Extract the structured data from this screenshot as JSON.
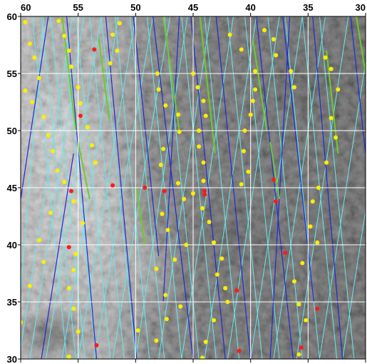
{
  "map": {
    "type": "lat-lon-grid-overlay",
    "background": "grayscale satellite terrain image",
    "lon_range": [
      60,
      30
    ],
    "lat_range": [
      30,
      60
    ],
    "lon_ticks": [
      60,
      55,
      50,
      45,
      40,
      35,
      30
    ],
    "lat_ticks": [
      60,
      55,
      50,
      45,
      40,
      35,
      30
    ],
    "grid": true,
    "colors": {
      "grid": "#ffffff",
      "track_cyan": "#66e8ee",
      "track_blue": "#1d2bd6",
      "track_green": "#6ecb2a",
      "point_yellow": "#ffee00",
      "point_red": "#ff1a1a"
    },
    "cyan_tracks": [
      [
        [
          59.0,
          60
        ],
        [
          56.0,
          30
        ]
      ],
      [
        [
          58.2,
          60
        ],
        [
          55.2,
          30
        ]
      ],
      [
        [
          57.4,
          60
        ],
        [
          54.4,
          30
        ]
      ],
      [
        [
          56.4,
          60
        ],
        [
          53.4,
          30
        ]
      ],
      [
        [
          55.2,
          60
        ],
        [
          52.2,
          30
        ]
      ],
      [
        [
          54.0,
          60
        ],
        [
          51.0,
          30
        ]
      ],
      [
        [
          53.0,
          60
        ],
        [
          50.0,
          30
        ]
      ],
      [
        [
          51.8,
          60
        ],
        [
          48.8,
          30
        ]
      ],
      [
        [
          50.5,
          60
        ],
        [
          47.5,
          30
        ]
      ],
      [
        [
          49.0,
          60
        ],
        [
          46.0,
          30
        ]
      ],
      [
        [
          47.5,
          60
        ],
        [
          44.5,
          30
        ]
      ],
      [
        [
          46.0,
          60
        ],
        [
          43.0,
          30
        ]
      ],
      [
        [
          44.0,
          60
        ],
        [
          41.0,
          30
        ]
      ],
      [
        [
          42.0,
          60
        ],
        [
          39.0,
          30
        ]
      ],
      [
        [
          40.5,
          60
        ],
        [
          37.5,
          30
        ]
      ],
      [
        [
          38.5,
          60
        ],
        [
          35.5,
          30
        ]
      ],
      [
        [
          37.0,
          60
        ],
        [
          34.0,
          30
        ]
      ],
      [
        [
          35.5,
          60
        ],
        [
          32.5,
          30
        ]
      ],
      [
        [
          34.0,
          60
        ],
        [
          31.0,
          30
        ]
      ],
      [
        [
          60.0,
          36
        ],
        [
          58.0,
          60
        ]
      ],
      [
        [
          60.0,
          31
        ],
        [
          55.5,
          60
        ]
      ],
      [
        [
          59.2,
          30
        ],
        [
          54.5,
          60
        ]
      ],
      [
        [
          57.8,
          30
        ],
        [
          53.0,
          60
        ]
      ],
      [
        [
          56.4,
          30
        ],
        [
          51.5,
          60
        ]
      ],
      [
        [
          55.0,
          30
        ],
        [
          50.0,
          60
        ]
      ],
      [
        [
          53.6,
          30
        ],
        [
          48.5,
          60
        ]
      ],
      [
        [
          52.0,
          30
        ],
        [
          47.0,
          60
        ]
      ],
      [
        [
          50.0,
          30
        ],
        [
          45.5,
          60
        ]
      ],
      [
        [
          48.0,
          30
        ],
        [
          43.5,
          60
        ]
      ],
      [
        [
          46.0,
          30
        ],
        [
          41.5,
          60
        ]
      ],
      [
        [
          44.0,
          30
        ],
        [
          39.5,
          60
        ]
      ],
      [
        [
          42.0,
          30
        ],
        [
          37.5,
          60
        ]
      ],
      [
        [
          40.0,
          30
        ],
        [
          35.5,
          60
        ]
      ],
      [
        [
          38.0,
          30
        ],
        [
          33.5,
          60
        ]
      ],
      [
        [
          36.0,
          30
        ],
        [
          31.5,
          60
        ]
      ],
      [
        [
          34.0,
          30
        ],
        [
          30.0,
          56
        ]
      ],
      [
        [
          32.0,
          30
        ],
        [
          30.0,
          43
        ]
      ]
    ],
    "blue_tracks": [
      [
        [
          60.0,
          44
        ],
        [
          57.6,
          60
        ]
      ],
      [
        [
          58.2,
          30
        ],
        [
          55.4,
          48
        ]
      ],
      [
        [
          56.0,
          60
        ],
        [
          53.4,
          30
        ]
      ],
      [
        [
          52.6,
          60
        ],
        [
          49.9,
          30
        ]
      ],
      [
        [
          50.2,
          60
        ],
        [
          48.0,
          39
        ]
      ],
      [
        [
          48.5,
          60
        ],
        [
          45.0,
          30
        ]
      ],
      [
        [
          45.2,
          60
        ],
        [
          42.2,
          30
        ]
      ],
      [
        [
          43.0,
          60
        ],
        [
          40.0,
          30
        ]
      ],
      [
        [
          39.5,
          60
        ],
        [
          36.3,
          30
        ]
      ],
      [
        [
          37.2,
          60
        ],
        [
          34.5,
          35
        ]
      ],
      [
        [
          34.6,
          60
        ],
        [
          32.0,
          30
        ]
      ],
      [
        [
          31.3,
          60
        ],
        [
          30.0,
          48
        ]
      ],
      [
        [
          47.6,
          35
        ],
        [
          46.2,
          60
        ]
      ],
      [
        [
          38.3,
          30
        ],
        [
          36.6,
          60
        ]
      ]
    ],
    "green_tracks": [
      [
        [
          56.4,
          60
        ],
        [
          55.2,
          50
        ]
      ],
      [
        [
          55.0,
          49
        ],
        [
          54.0,
          44
        ]
      ],
      [
        [
          47.6,
          60
        ],
        [
          46.2,
          50
        ]
      ],
      [
        [
          44.4,
          60
        ],
        [
          43.1,
          48
        ]
      ],
      [
        [
          39.8,
          58
        ],
        [
          38.6,
          50
        ]
      ],
      [
        [
          38.3,
          49
        ],
        [
          37.5,
          44
        ]
      ],
      [
        [
          33.4,
          57
        ],
        [
          32.4,
          48
        ]
      ],
      [
        [
          49.9,
          45
        ],
        [
          49.2,
          40
        ]
      ],
      [
        [
          30.8,
          60
        ],
        [
          30.0,
          55
        ]
      ],
      [
        [
          53.2,
          58
        ],
        [
          52.3,
          51
        ]
      ]
    ],
    "yellow_points": [
      [
        59.6,
        59.5
      ],
      [
        59.2,
        57.6
      ],
      [
        58.8,
        56.4
      ],
      [
        58.4,
        54.6
      ],
      [
        59.6,
        53.5
      ],
      [
        59.0,
        52.5
      ],
      [
        58.0,
        51.2
      ],
      [
        57.6,
        49.6
      ],
      [
        57.2,
        48.2
      ],
      [
        56.8,
        46.5
      ],
      [
        56.2,
        45.5
      ],
      [
        57.4,
        42.8
      ],
      [
        58.4,
        40.4
      ],
      [
        58.0,
        38.5
      ],
      [
        59.2,
        36.4
      ],
      [
        60.0,
        33.2
      ],
      [
        56.7,
        59.6
      ],
      [
        56.2,
        58.3
      ],
      [
        55.8,
        57.0
      ],
      [
        55.6,
        55.6
      ],
      [
        55.0,
        53.8
      ],
      [
        54.8,
        52.4
      ],
      [
        54.2,
        50.3
      ],
      [
        53.8,
        48.7
      ],
      [
        53.5,
        47.2
      ],
      [
        55.4,
        43.8
      ],
      [
        54.6,
        41.9
      ],
      [
        55.2,
        39.2
      ],
      [
        55.4,
        37.8
      ],
      [
        55.8,
        36.2
      ],
      [
        55.4,
        34.4
      ],
      [
        55.0,
        32.4
      ],
      [
        55.8,
        30.2
      ],
      [
        51.4,
        59.4
      ],
      [
        52.0,
        58.4
      ],
      [
        51.6,
        57.0
      ],
      [
        52.2,
        55.9
      ],
      [
        48.1,
        55.0
      ],
      [
        48.0,
        53.6
      ],
      [
        47.4,
        52.2
      ],
      [
        46.3,
        51.4
      ],
      [
        46.2,
        49.9
      ],
      [
        47.6,
        48.4
      ],
      [
        47.8,
        47.0
      ],
      [
        46.3,
        45.4
      ],
      [
        45.8,
        44.0
      ],
      [
        47.7,
        42.7
      ],
      [
        47.2,
        41.3
      ],
      [
        45.6,
        40.0
      ],
      [
        46.6,
        38.7
      ],
      [
        48.2,
        37.9
      ],
      [
        47.4,
        35.6
      ],
      [
        46.1,
        34.6
      ],
      [
        47.3,
        33.5
      ],
      [
        49.8,
        32.5
      ],
      [
        48.2,
        31.6
      ],
      [
        45.0,
        55.0
      ],
      [
        44.6,
        53.8
      ],
      [
        44.1,
        52.6
      ],
      [
        43.9,
        51.3
      ],
      [
        44.5,
        50.0
      ],
      [
        44.5,
        48.6
      ],
      [
        44.1,
        47.2
      ],
      [
        44.1,
        45.6
      ],
      [
        45.0,
        44.5
      ],
      [
        44.2,
        43.2
      ],
      [
        43.6,
        42.0
      ],
      [
        43.2,
        40.2
      ],
      [
        42.5,
        38.8
      ],
      [
        42.9,
        37.4
      ],
      [
        42.2,
        36.2
      ],
      [
        42.0,
        35.0
      ],
      [
        43.2,
        33.4
      ],
      [
        43.9,
        31.5
      ],
      [
        44.2,
        30.1
      ],
      [
        41.8,
        58.4
      ],
      [
        40.8,
        57.1
      ],
      [
        39.6,
        55.2
      ],
      [
        39.6,
        53.6
      ],
      [
        39.8,
        52.6
      ],
      [
        40.0,
        51.4
      ],
      [
        40.5,
        50.0
      ],
      [
        40.6,
        48.2
      ],
      [
        40.2,
        46.4
      ],
      [
        40.8,
        45.3
      ],
      [
        38.8,
        58.8
      ],
      [
        38.0,
        58.0
      ],
      [
        37.8,
        56.6
      ],
      [
        36.5,
        55.2
      ],
      [
        36.2,
        53.8
      ],
      [
        33.5,
        56.4
      ],
      [
        33.0,
        55.4
      ],
      [
        32.4,
        53.6
      ],
      [
        33.0,
        51.1
      ],
      [
        32.6,
        49.4
      ],
      [
        33.4,
        47.2
      ],
      [
        34.1,
        45.0
      ],
      [
        34.6,
        43.8
      ],
      [
        34.8,
        41.6
      ],
      [
        34.2,
        40.2
      ],
      [
        35.5,
        38.4
      ],
      [
        36.2,
        36.8
      ],
      [
        35.8,
        34.8
      ],
      [
        35.2,
        33.4
      ],
      [
        35.8,
        30.4
      ]
    ],
    "red_points": [
      [
        53.6,
        57.1
      ],
      [
        54.8,
        51.3
      ],
      [
        52.0,
        45.2
      ],
      [
        55.6,
        44.7
      ],
      [
        49.2,
        45.0
      ],
      [
        47.5,
        44.7
      ],
      [
        44.0,
        44.4
      ],
      [
        41.2,
        36.0
      ],
      [
        44.0,
        44.7
      ],
      [
        38.0,
        45.7
      ],
      [
        37.8,
        43.8
      ],
      [
        37.0,
        39.3
      ],
      [
        55.8,
        39.8
      ],
      [
        53.4,
        31.2
      ],
      [
        35.6,
        31.0
      ],
      [
        34.2,
        34.4
      ],
      [
        41.0,
        30.7
      ],
      [
        48.3,
        29.9
      ]
    ]
  }
}
